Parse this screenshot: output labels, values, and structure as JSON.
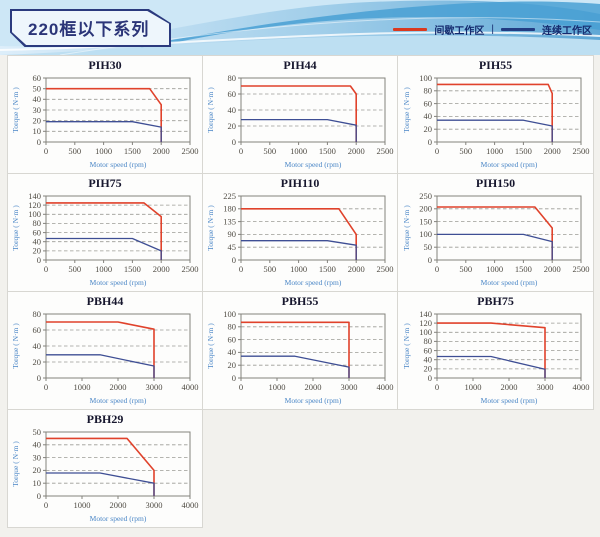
{
  "page": {
    "series_title": "220框以下系列",
    "legend": {
      "intermittent_label": "间歇工作区",
      "separator": "|",
      "continuous_label": "连续工作区",
      "intermittent_color": "#da391f",
      "continuous_color": "#223c82"
    }
  },
  "chart_data": [
    {
      "type": "line",
      "title": "PIH30",
      "xlabel": "Motor speed (rpm)",
      "ylabel": "Torque ( N·m )",
      "xlim": [
        0,
        2500
      ],
      "xticks": [
        0,
        500,
        1000,
        1500,
        2000,
        2500
      ],
      "ylim": [
        0,
        60
      ],
      "yticks": [
        0,
        10,
        20,
        30,
        40,
        50,
        60
      ],
      "grid": "dashed-horizontal",
      "legend_position": "page-header",
      "series": [
        {
          "name": "间歇工作区",
          "color": "#e0422b",
          "width": 1.6,
          "points": [
            [
              0,
              50
            ],
            [
              1800,
              50
            ],
            [
              2000,
              35
            ],
            [
              2000,
              0
            ]
          ]
        },
        {
          "name": "连续工作区",
          "color": "#3e4e94",
          "width": 1.3,
          "points": [
            [
              0,
              19
            ],
            [
              1500,
              19
            ],
            [
              2000,
              14
            ],
            [
              2000,
              0
            ]
          ]
        }
      ]
    },
    {
      "type": "line",
      "title": "PIH44",
      "xlabel": "Motor speed (rpm)",
      "ylabel": "Torque ( N·m )",
      "xlim": [
        0,
        2500
      ],
      "xticks": [
        0,
        500,
        1000,
        1500,
        2000,
        2500
      ],
      "ylim": [
        0,
        80
      ],
      "yticks": [
        0,
        20,
        40,
        60,
        80
      ],
      "grid": "dashed-horizontal",
      "legend_position": "page-header",
      "series": [
        {
          "name": "间歇工作区",
          "color": "#e0422b",
          "width": 1.6,
          "points": [
            [
              0,
              70
            ],
            [
              1900,
              70
            ],
            [
              2000,
              60
            ],
            [
              2000,
              0
            ]
          ]
        },
        {
          "name": "连续工作区",
          "color": "#3e4e94",
          "width": 1.3,
          "points": [
            [
              0,
              28
            ],
            [
              1500,
              28
            ],
            [
              2000,
              21
            ],
            [
              2000,
              0
            ]
          ]
        }
      ]
    },
    {
      "type": "line",
      "title": "PIH55",
      "xlabel": "Motor speed (rpm)",
      "ylabel": "Torque ( N·m )",
      "xlim": [
        0,
        2500
      ],
      "xticks": [
        0,
        500,
        1000,
        1500,
        2000,
        2500
      ],
      "ylim": [
        0,
        100
      ],
      "yticks": [
        0,
        20,
        40,
        60,
        80,
        100
      ],
      "grid": "dashed-horizontal",
      "legend_position": "page-header",
      "series": [
        {
          "name": "间歇工作区",
          "color": "#e0422b",
          "width": 1.6,
          "points": [
            [
              0,
              90
            ],
            [
              1930,
              90
            ],
            [
              2000,
              76
            ],
            [
              2000,
              0
            ]
          ]
        },
        {
          "name": "连续工作区",
          "color": "#3e4e94",
          "width": 1.3,
          "points": [
            [
              0,
              34
            ],
            [
              1500,
              34
            ],
            [
              2000,
              25
            ],
            [
              2000,
              0
            ]
          ]
        }
      ]
    },
    {
      "type": "line",
      "title": "PIH75",
      "xlabel": "Motor speed (rpm)",
      "ylabel": "Torque ( N·m )",
      "xlim": [
        0,
        2500
      ],
      "xticks": [
        0,
        500,
        1000,
        1500,
        2000,
        2500
      ],
      "ylim": [
        0,
        140
      ],
      "yticks": [
        0,
        20,
        40,
        60,
        80,
        100,
        120,
        140
      ],
      "grid": "dashed-horizontal",
      "legend_position": "page-header",
      "series": [
        {
          "name": "间歇工作区",
          "color": "#e0422b",
          "width": 1.6,
          "points": [
            [
              0,
              125
            ],
            [
              1700,
              125
            ],
            [
              2000,
              95
            ],
            [
              2000,
              0
            ]
          ]
        },
        {
          "name": "连续工作区",
          "color": "#3e4e94",
          "width": 1.3,
          "points": [
            [
              0,
              47
            ],
            [
              1500,
              47
            ],
            [
              2000,
              20
            ],
            [
              2000,
              0
            ]
          ]
        }
      ]
    },
    {
      "type": "line",
      "title": "PIH110",
      "xlabel": "Motor speed (rpm)",
      "ylabel": "Torque ( N·m )",
      "xlim": [
        0,
        2500
      ],
      "xticks": [
        0,
        500,
        1000,
        1500,
        2000,
        2500
      ],
      "ylim": [
        0,
        225
      ],
      "yticks": [
        0,
        45,
        90,
        135,
        180,
        225
      ],
      "grid": "dashed-horizontal",
      "legend_position": "page-header",
      "series": [
        {
          "name": "间歇工作区",
          "color": "#e0422b",
          "width": 1.6,
          "points": [
            [
              0,
              180
            ],
            [
              1700,
              180
            ],
            [
              2000,
              90
            ],
            [
              2000,
              0
            ]
          ]
        },
        {
          "name": "连续工作区",
          "color": "#3e4e94",
          "width": 1.3,
          "points": [
            [
              0,
              68
            ],
            [
              1500,
              68
            ],
            [
              2000,
              52
            ],
            [
              2000,
              0
            ]
          ]
        }
      ]
    },
    {
      "type": "line",
      "title": "PIH150",
      "xlabel": "Motor speed (rpm)",
      "ylabel": "Torque ( N·m )",
      "xlim": [
        0,
        2500
      ],
      "xticks": [
        0,
        500,
        1000,
        1500,
        2000,
        2500
      ],
      "ylim": [
        0,
        250
      ],
      "yticks": [
        0,
        50,
        100,
        150,
        200,
        250
      ],
      "grid": "dashed-horizontal",
      "legend_position": "page-header",
      "series": [
        {
          "name": "间歇工作区",
          "color": "#e0422b",
          "width": 1.6,
          "points": [
            [
              0,
              207
            ],
            [
              1700,
              207
            ],
            [
              2000,
              125
            ],
            [
              2000,
              0
            ]
          ]
        },
        {
          "name": "连续工作区",
          "color": "#3e4e94",
          "width": 1.3,
          "points": [
            [
              0,
              100
            ],
            [
              1500,
              100
            ],
            [
              2000,
              72
            ],
            [
              2000,
              0
            ]
          ]
        }
      ]
    },
    {
      "type": "line",
      "title": "PBH44",
      "xlabel": "Motor speed (rpm)",
      "ylabel": "Torque ( N·m )",
      "xlim": [
        0,
        4000
      ],
      "xticks": [
        0,
        1000,
        2000,
        3000,
        4000
      ],
      "ylim": [
        0,
        80
      ],
      "yticks": [
        0,
        20,
        40,
        60,
        80
      ],
      "grid": "dashed-horizontal",
      "legend_position": "page-header",
      "series": [
        {
          "name": "间歇工作区",
          "color": "#e0422b",
          "width": 1.6,
          "points": [
            [
              0,
              70
            ],
            [
              2000,
              70
            ],
            [
              3000,
              61
            ],
            [
              3000,
              0
            ]
          ]
        },
        {
          "name": "连续工作区",
          "color": "#3e4e94",
          "width": 1.3,
          "points": [
            [
              0,
              29
            ],
            [
              1500,
              29
            ],
            [
              3000,
              15
            ],
            [
              3000,
              0
            ]
          ]
        }
      ]
    },
    {
      "type": "line",
      "title": "PBH55",
      "xlabel": "Motor speed (rpm)",
      "ylabel": "Torque ( N·m )",
      "xlim": [
        0,
        4000
      ],
      "xticks": [
        0,
        1000,
        2000,
        3000,
        4000
      ],
      "ylim": [
        0,
        100
      ],
      "yticks": [
        0,
        20,
        40,
        60,
        80,
        100
      ],
      "grid": "dashed-horizontal",
      "legend_position": "page-header",
      "series": [
        {
          "name": "间歇工作区",
          "color": "#e0422b",
          "width": 1.6,
          "points": [
            [
              0,
              87
            ],
            [
              3000,
              87
            ],
            [
              3000,
              0
            ]
          ]
        },
        {
          "name": "连续工作区",
          "color": "#3e4e94",
          "width": 1.3,
          "points": [
            [
              0,
              34
            ],
            [
              1500,
              34
            ],
            [
              3000,
              17
            ],
            [
              3000,
              0
            ]
          ]
        }
      ]
    },
    {
      "type": "line",
      "title": "PBH75",
      "xlabel": "Motor speed (rpm)",
      "ylabel": "Torque ( N·m )",
      "xlim": [
        0,
        4000
      ],
      "xticks": [
        0,
        1000,
        2000,
        3000,
        4000
      ],
      "ylim": [
        0,
        140
      ],
      "yticks": [
        0,
        20,
        40,
        60,
        80,
        100,
        120,
        140
      ],
      "grid": "dashed-horizontal",
      "legend_position": "page-header",
      "series": [
        {
          "name": "间歇工作区",
          "color": "#e0422b",
          "width": 1.6,
          "points": [
            [
              0,
              120
            ],
            [
              1500,
              120
            ],
            [
              3000,
              110
            ],
            [
              3000,
              0
            ]
          ]
        },
        {
          "name": "连续工作区",
          "color": "#3e4e94",
          "width": 1.3,
          "points": [
            [
              0,
              47
            ],
            [
              1500,
              47
            ],
            [
              3000,
              19
            ],
            [
              3000,
              0
            ]
          ]
        }
      ]
    },
    {
      "type": "line",
      "title": "PBH29",
      "xlabel": "Motor speed (rpm)",
      "ylabel": "Torque ( N·m )",
      "xlim": [
        0,
        4000
      ],
      "xticks": [
        0,
        1000,
        2000,
        3000,
        4000
      ],
      "ylim": [
        0,
        50
      ],
      "yticks": [
        0,
        10,
        20,
        30,
        40,
        50
      ],
      "grid": "dashed-horizontal",
      "legend_position": "page-header",
      "series": [
        {
          "name": "间歇工作区",
          "color": "#e0422b",
          "width": 1.6,
          "points": [
            [
              0,
              45
            ],
            [
              2250,
              45
            ],
            [
              3000,
              20
            ],
            [
              3000,
              0
            ]
          ]
        },
        {
          "name": "连续工作区",
          "color": "#3e4e94",
          "width": 1.3,
          "points": [
            [
              0,
              18
            ],
            [
              1500,
              18
            ],
            [
              3000,
              10
            ],
            [
              3000,
              0
            ]
          ]
        }
      ]
    }
  ]
}
